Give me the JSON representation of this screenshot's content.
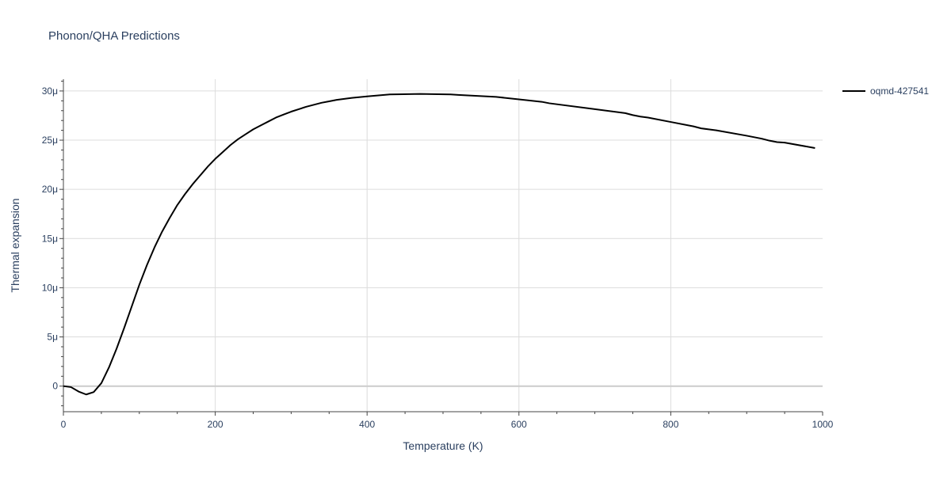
{
  "chart_data": {
    "type": "line",
    "title": "Phonon/QHA Predictions",
    "xlabel": "Temperature (K)",
    "ylabel": "Thermal expansion",
    "xlim": [
      0,
      1000
    ],
    "ylim": [
      -2.6e-06,
      3.12e-05
    ],
    "x_ticks": [
      0,
      200,
      400,
      600,
      800,
      1000
    ],
    "x_tick_labels": [
      "0",
      "200",
      "400",
      "600",
      "800",
      "1000"
    ],
    "y_ticks": [
      0,
      5e-06,
      1e-05,
      1.5e-05,
      2e-05,
      2.5e-05,
      3e-05
    ],
    "y_tick_labels": [
      "0",
      "5μ",
      "10μ",
      "15μ",
      "20μ",
      "25μ",
      "30μ"
    ],
    "grid": true,
    "legend_position": "top-right",
    "series": [
      {
        "name": "oqmd-427541",
        "color": "#000000",
        "x": [
          0,
          10,
          20,
          30,
          40,
          50,
          60,
          70,
          80,
          90,
          100,
          110,
          120,
          130,
          140,
          150,
          160,
          170,
          180,
          190,
          200,
          210,
          220,
          230,
          240,
          250,
          260,
          270,
          280,
          290,
          300,
          310,
          320,
          330,
          340,
          350,
          360,
          380,
          400,
          430,
          470,
          510,
          520,
          570,
          600,
          630,
          640,
          700,
          740,
          750,
          760,
          770,
          800,
          830,
          840,
          850,
          860,
          900,
          920,
          930,
          940,
          950,
          990
        ],
        "y": [
          0,
          -1e-07,
          -5.5e-07,
          -8.5e-07,
          -6e-07,
          3e-07,
          1.9e-06,
          3.8e-06,
          5.9e-06,
          8.1e-06,
          1.03e-05,
          1.23e-05,
          1.41e-05,
          1.57e-05,
          1.71e-05,
          1.84e-05,
          1.95e-05,
          2.05e-05,
          2.14e-05,
          2.23e-05,
          2.31e-05,
          2.38e-05,
          2.45e-05,
          2.51e-05,
          2.56e-05,
          2.61e-05,
          2.65e-05,
          2.69e-05,
          2.73e-05,
          2.76e-05,
          2.79e-05,
          2.815e-05,
          2.84e-05,
          2.86e-05,
          2.88e-05,
          2.895e-05,
          2.91e-05,
          2.93e-05,
          2.945e-05,
          2.965e-05,
          2.97e-05,
          2.965e-05,
          2.96e-05,
          2.94e-05,
          2.915e-05,
          2.89e-05,
          2.875e-05,
          2.815e-05,
          2.775e-05,
          2.755e-05,
          2.74e-05,
          2.73e-05,
          2.685e-05,
          2.64e-05,
          2.62e-05,
          2.61e-05,
          2.6e-05,
          2.545e-05,
          2.515e-05,
          2.495e-05,
          2.48e-05,
          2.475e-05,
          2.42e-05
        ]
      }
    ]
  }
}
